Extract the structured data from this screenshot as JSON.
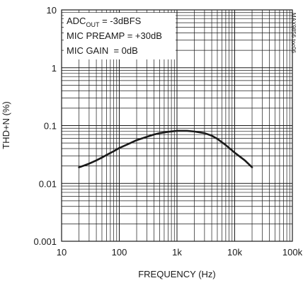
{
  "chart_data": {
    "type": "line",
    "x_scale": "log",
    "y_scale": "log",
    "xlim": [
      10,
      100000
    ],
    "ylim": [
      0.001,
      10
    ],
    "xlabel": "FREQUENCY (Hz)",
    "ylabel": "THD+N (%)",
    "x_ticks": [
      "10",
      "100",
      "1k",
      "10k",
      "100k"
    ],
    "y_ticks": [
      "10",
      "1",
      "0.1",
      "0.01",
      "0.001"
    ],
    "grid": true,
    "annotations": [
      {
        "main": "ADC",
        "sub": "OUT",
        "rest": " = -3dBFS"
      },
      {
        "text": "MIC PREAMP = +30dB"
      },
      {
        "text": "MIC GAIN  = 0dB"
      }
    ],
    "watermark": "MAX9856 toc06",
    "series": [
      {
        "x": [
          20,
          25,
          30,
          40,
          50,
          60,
          80,
          100,
          150,
          200,
          300,
          400,
          500,
          700,
          1000,
          1500,
          2000,
          3000,
          4000,
          5000,
          7000,
          10000,
          15000,
          20000
        ],
        "y": [
          0.019,
          0.0205,
          0.022,
          0.025,
          0.028,
          0.031,
          0.036,
          0.041,
          0.049,
          0.056,
          0.064,
          0.07,
          0.074,
          0.078,
          0.081,
          0.081,
          0.079,
          0.074,
          0.067,
          0.059,
          0.046,
          0.034,
          0.025,
          0.019
        ]
      }
    ]
  }
}
